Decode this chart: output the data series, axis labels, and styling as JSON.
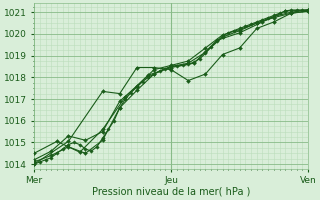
{
  "xlabel": "Pression niveau de la mer( hPa )",
  "xlim": [
    0,
    48
  ],
  "ylim": [
    1013.8,
    1021.4
  ],
  "yticks": [
    1014,
    1015,
    1016,
    1017,
    1018,
    1019,
    1020,
    1021
  ],
  "xtick_labels": [
    "Mer",
    "Jeu",
    "Ven"
  ],
  "xtick_positions": [
    0,
    24,
    48
  ],
  "background_color": "#d9eed9",
  "grid_major_color": "#88bb88",
  "grid_minor_color": "#bbddbb",
  "line_color": "#1a5c1a",
  "marker_color": "#1a5c1a",
  "font_color": "#1a5c1a",
  "series": [
    {
      "x": [
        0,
        1,
        2,
        3,
        4,
        5,
        6,
        7,
        8,
        9,
        10,
        11,
        12,
        13,
        14,
        15,
        16,
        17,
        18,
        19,
        20,
        21,
        22,
        23,
        24,
        25,
        26,
        27,
        28,
        29,
        30,
        31,
        32,
        33,
        34,
        35,
        36,
        37,
        38,
        39,
        40,
        41,
        42,
        43,
        44,
        45,
        46,
        47,
        48
      ],
      "y": [
        1014.0,
        1014.1,
        1014.2,
        1014.3,
        1014.5,
        1014.7,
        1014.9,
        1015.0,
        1014.9,
        1014.7,
        1014.6,
        1014.8,
        1015.2,
        1015.6,
        1016.0,
        1016.6,
        1017.0,
        1017.3,
        1017.55,
        1017.8,
        1018.0,
        1018.15,
        1018.3,
        1018.4,
        1018.5,
        1018.52,
        1018.55,
        1018.6,
        1018.7,
        1018.85,
        1019.1,
        1019.4,
        1019.65,
        1019.9,
        1020.05,
        1020.15,
        1020.25,
        1020.35,
        1020.45,
        1020.55,
        1020.65,
        1020.75,
        1020.85,
        1020.95,
        1021.05,
        1021.1,
        1021.1,
        1021.1,
        1021.1
      ],
      "marker": "D",
      "ms": 1.8
    },
    {
      "x": [
        0,
        3,
        6,
        9,
        12,
        15,
        18,
        21,
        24,
        27,
        30,
        33,
        36,
        39,
        42,
        45,
        48
      ],
      "y": [
        1014.1,
        1014.4,
        1014.8,
        1014.5,
        1015.1,
        1016.6,
        1017.4,
        1018.15,
        1018.5,
        1018.65,
        1019.15,
        1019.85,
        1020.15,
        1020.5,
        1020.8,
        1021.0,
        1021.1
      ],
      "marker": "D",
      "ms": 2.0
    },
    {
      "x": [
        0,
        3,
        6,
        9,
        12,
        15,
        18,
        21,
        24,
        27,
        30,
        33,
        36,
        39,
        42,
        45,
        48
      ],
      "y": [
        1014.2,
        1014.6,
        1015.3,
        1015.1,
        1015.5,
        1016.9,
        1017.6,
        1018.35,
        1018.55,
        1018.75,
        1019.35,
        1019.95,
        1020.2,
        1020.5,
        1020.75,
        1020.95,
        1021.05
      ],
      "marker": "D",
      "ms": 2.0
    },
    {
      "x": [
        0,
        4,
        8,
        12,
        16,
        20,
        24,
        28,
        32,
        36,
        40,
        44,
        48
      ],
      "y": [
        1014.5,
        1015.05,
        1014.55,
        1015.6,
        1017.1,
        1018.1,
        1018.45,
        1018.65,
        1019.7,
        1020.05,
        1020.55,
        1021.05,
        1021.1
      ],
      "marker": "D",
      "ms": 2.0
    },
    {
      "x": [
        0,
        6,
        12,
        15,
        18,
        21,
        24,
        27,
        30,
        33,
        36,
        39,
        42,
        45,
        48
      ],
      "y": [
        1014.0,
        1015.05,
        1017.35,
        1017.25,
        1018.45,
        1018.45,
        1018.35,
        1017.85,
        1018.15,
        1019.05,
        1019.35,
        1020.25,
        1020.55,
        1020.95,
        1021.05
      ],
      "marker": "D",
      "ms": 2.0
    }
  ]
}
